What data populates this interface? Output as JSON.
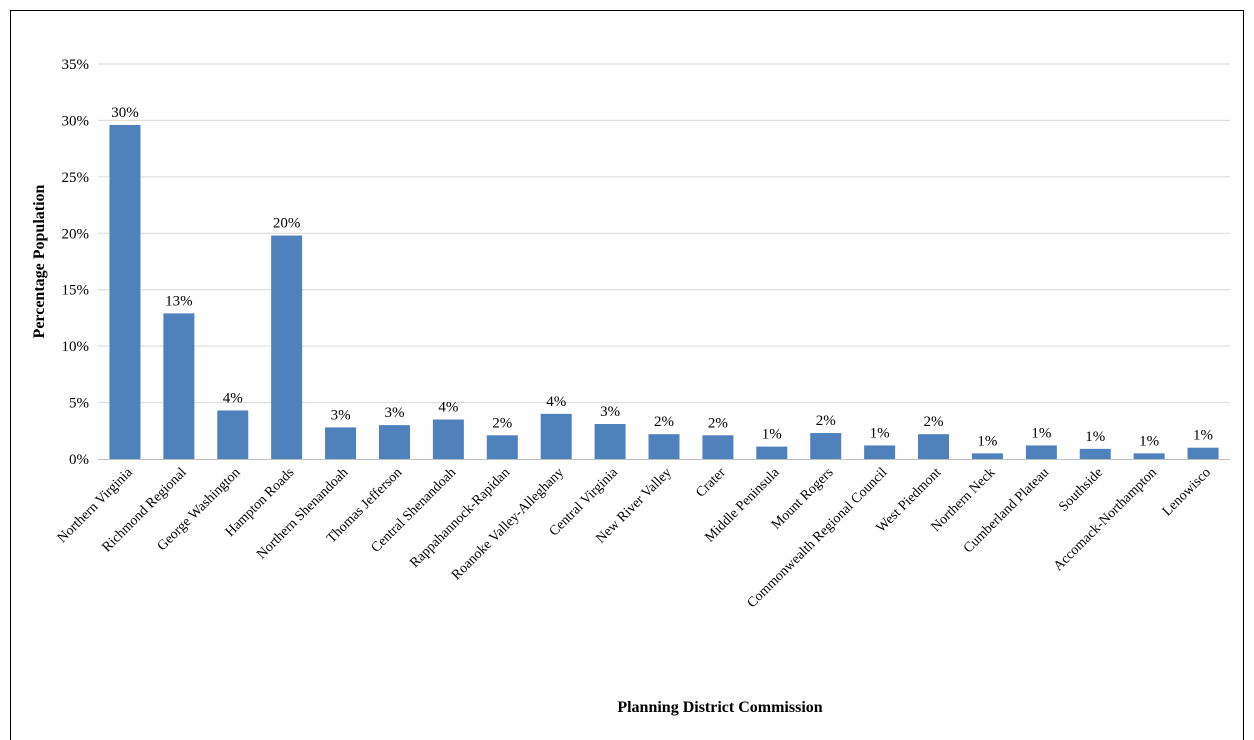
{
  "chart_data": {
    "type": "bar",
    "title": "",
    "xlabel": "Planning District Commission",
    "ylabel": "Percentage Population",
    "ylim": [
      0,
      35
    ],
    "yticks": [
      0,
      5,
      10,
      15,
      20,
      25,
      30,
      35
    ],
    "ytick_labels": [
      "0%",
      "5%",
      "10%",
      "15%",
      "20%",
      "25%",
      "30%",
      "35%"
    ],
    "grid": true,
    "legend": "none",
    "bar_color": "#4F81BD",
    "categories": [
      "Northern Virginia",
      "Richmond Regional",
      "George Washington",
      "Hampton Roads",
      "Northern Shenandoah",
      "Thomas Jefferson",
      "Central Shenandoah",
      "Rappahannock-Rapidan",
      "Roanoke Valley-Alleghany",
      "Central Virginia",
      "New River Valley",
      "Crater",
      "Middle Peninsula",
      "Mount Rogers",
      "Commonwealth Regional Council",
      "West Piedmont",
      "Northern Neck",
      "Cumberland Plateau",
      "Southside",
      "Accomack-Northampton",
      "Lenowisco"
    ],
    "values": [
      29.6,
      12.9,
      4.3,
      19.8,
      2.8,
      3.0,
      3.5,
      2.1,
      4.0,
      3.1,
      2.2,
      2.1,
      1.1,
      2.3,
      1.2,
      2.2,
      0.5,
      1.2,
      0.9,
      0.5,
      1.0
    ],
    "data_labels": [
      "30%",
      "13%",
      "4%",
      "20%",
      "3%",
      "3%",
      "4%",
      "2%",
      "4%",
      "3%",
      "2%",
      "2%",
      "1%",
      "2%",
      "1%",
      "2%",
      "1%",
      "1%",
      "1%",
      "1%",
      "1%"
    ]
  }
}
